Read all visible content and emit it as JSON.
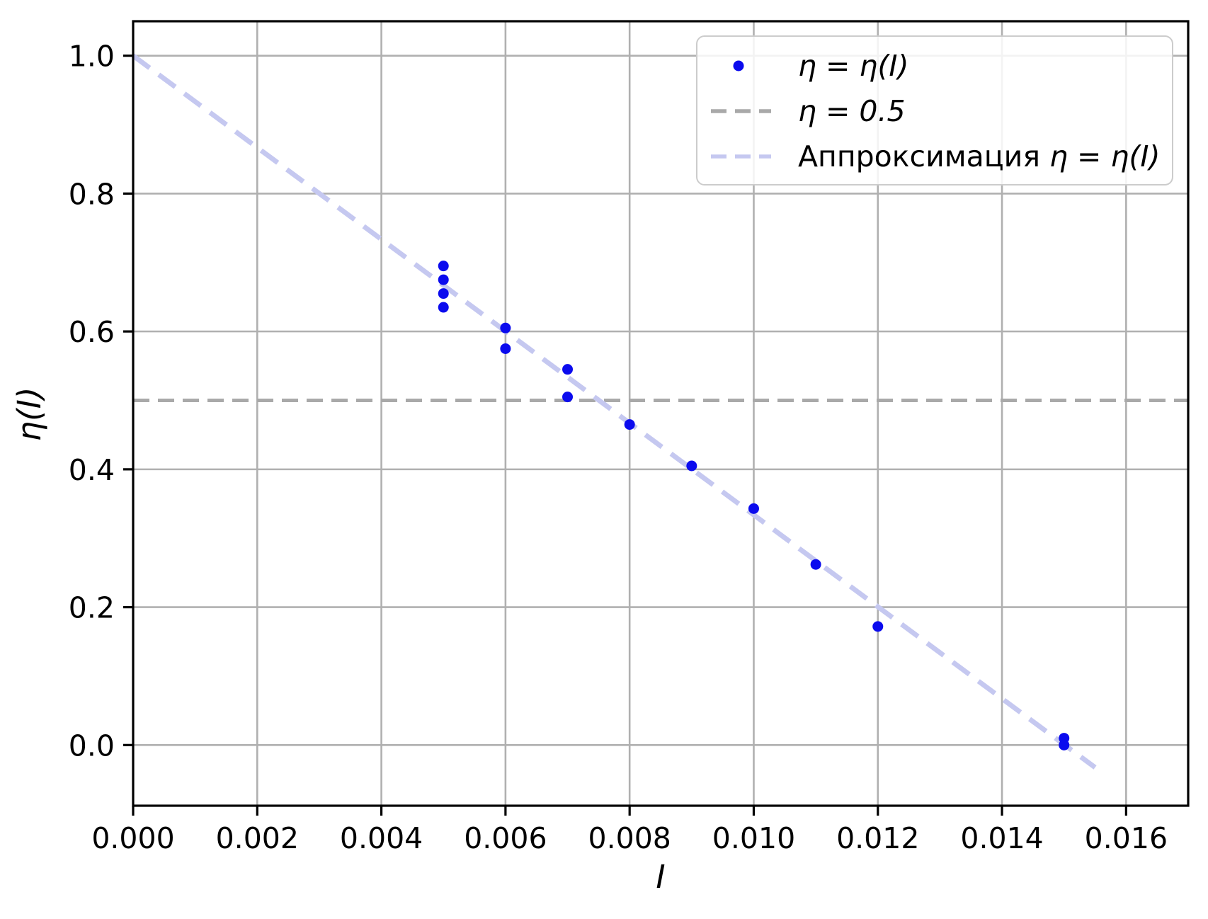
{
  "figure": {
    "background": "#ffffff",
    "text_color": "#000000",
    "spine_color": "#000000"
  },
  "chart_data": {
    "type": "scatter",
    "title": "",
    "xlabel": "I",
    "ylabel": "η(I)",
    "xlim": [
      0,
      0.017
    ],
    "ylim": [
      -0.088,
      1.05
    ],
    "grid": true,
    "grid_color": "#b0b0b0",
    "x_ticks": [
      0,
      0.002,
      0.004,
      0.006,
      0.008,
      0.01,
      0.012,
      0.014,
      0.016
    ],
    "x_tick_labels": [
      "0.000",
      "0.002",
      "0.004",
      "0.006",
      "0.008",
      "0.010",
      "0.012",
      "0.014",
      "0.016"
    ],
    "y_ticks": [
      0.0,
      0.2,
      0.4,
      0.6,
      0.8,
      1.0
    ],
    "y_tick_labels": [
      "0.0",
      "0.2",
      "0.4",
      "0.6",
      "0.8",
      "1.0"
    ],
    "series": [
      {
        "name": "η = η(I)",
        "type": "scatter",
        "color": "#0b0bee",
        "marker_radius": 7.5,
        "points": [
          [
            0.005,
            0.695
          ],
          [
            0.005,
            0.675
          ],
          [
            0.005,
            0.655
          ],
          [
            0.005,
            0.635
          ],
          [
            0.006,
            0.605
          ],
          [
            0.006,
            0.575
          ],
          [
            0.007,
            0.545
          ],
          [
            0.007,
            0.505
          ],
          [
            0.008,
            0.465
          ],
          [
            0.009,
            0.405
          ],
          [
            0.01,
            0.343
          ],
          [
            0.011,
            0.262
          ],
          [
            0.012,
            0.172
          ],
          [
            0.015,
            0.01
          ],
          [
            0.015,
            0.0
          ]
        ]
      },
      {
        "name": "η = 0.5",
        "type": "hline",
        "y": 0.5,
        "color": "#a9a9a9",
        "linestyle": "dashed"
      },
      {
        "name": "Аппроксимация η = η(I)",
        "type": "line",
        "color": "#c5c8f0",
        "linestyle": "dashed",
        "points": [
          [
            0.0,
            1.0
          ],
          [
            0.0155,
            -0.0325
          ]
        ]
      }
    ],
    "legend": {
      "position": "upper right",
      "entries": [
        {
          "marker": "dot",
          "color": "#0b0bee",
          "prefix": "",
          "math": "η = η(I)"
        },
        {
          "marker": "dashed-line",
          "color": "#a9a9a9",
          "prefix": "",
          "math": "η = 0.5"
        },
        {
          "marker": "dashed-line",
          "color": "#c5c8f0",
          "prefix": "Аппроксимация ",
          "math": "η = η(I)"
        }
      ]
    }
  }
}
